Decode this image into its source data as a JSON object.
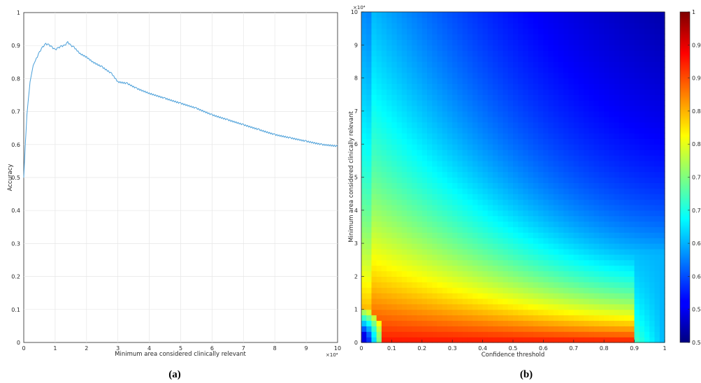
{
  "chart_data": [
    {
      "type": "line",
      "caption": "(a)",
      "xlabel": "Minimum area considered clinically relevant",
      "ylabel": "Accuracy",
      "x_exponent": "×10⁴",
      "xlim": [
        0,
        10
      ],
      "ylim": [
        0,
        1
      ],
      "xticks": [
        "0",
        "1",
        "2",
        "3",
        "4",
        "5",
        "6",
        "7",
        "8",
        "9",
        "10"
      ],
      "yticks": [
        "0",
        "0.1",
        "0.2",
        "0.3",
        "0.4",
        "0.5",
        "0.6",
        "0.7",
        "0.8",
        "0.9",
        "1"
      ],
      "grid": true,
      "line_color": "#4a9fd9",
      "x": [
        0,
        0.05,
        0.1,
        0.15,
        0.2,
        0.3,
        0.4,
        0.5,
        0.6,
        0.7,
        0.8,
        0.9,
        1.0,
        1.1,
        1.2,
        1.3,
        1.4,
        1.5,
        1.6,
        1.8,
        2.0,
        2.2,
        2.5,
        2.8,
        3.0,
        3.3,
        3.6,
        4.0,
        4.5,
        5.0,
        5.5,
        6.0,
        6.5,
        7.0,
        7.5,
        8.0,
        8.5,
        9.0,
        9.5,
        10.0
      ],
      "y": [
        0.5,
        0.6,
        0.69,
        0.74,
        0.79,
        0.84,
        0.86,
        0.88,
        0.895,
        0.905,
        0.902,
        0.895,
        0.887,
        0.893,
        0.898,
        0.9,
        0.91,
        0.9,
        0.895,
        0.875,
        0.865,
        0.85,
        0.835,
        0.815,
        0.79,
        0.785,
        0.77,
        0.755,
        0.74,
        0.725,
        0.71,
        0.69,
        0.675,
        0.66,
        0.645,
        0.63,
        0.62,
        0.61,
        0.6,
        0.595
      ]
    },
    {
      "type": "heatmap",
      "caption": "(b)",
      "xlabel": "Confidence threshold",
      "ylabel": "Minimum area considered clinically relevant",
      "y_exponent": "×10⁴",
      "xlim": [
        0,
        1
      ],
      "ylim": [
        0,
        10
      ],
      "xticks": [
        "0",
        "0.1",
        "0.2",
        "0.3",
        "0.4",
        "0.5",
        "0.6",
        "0.7",
        "0.8",
        "0.9",
        "1"
      ],
      "yticks": [
        "0",
        "1",
        "2",
        "3",
        "4",
        "5",
        "6",
        "7",
        "8",
        "9",
        "10"
      ],
      "colorbar": {
        "colormap": "jet",
        "range": [
          0.5,
          1
        ],
        "ticks": [
          "0.5",
          "0.55",
          "0.6",
          "0.65",
          "0.7",
          "0.75",
          "0.8",
          "0.85",
          "0.9",
          "0.95",
          "1"
        ]
      },
      "description_values": {
        "peak_region": "confidence 0.1–0.9, area 0–2 ×10⁴, accuracy ≈ 0.93",
        "low_region": "upper right, accuracy ≈ 0.6"
      }
    }
  ]
}
